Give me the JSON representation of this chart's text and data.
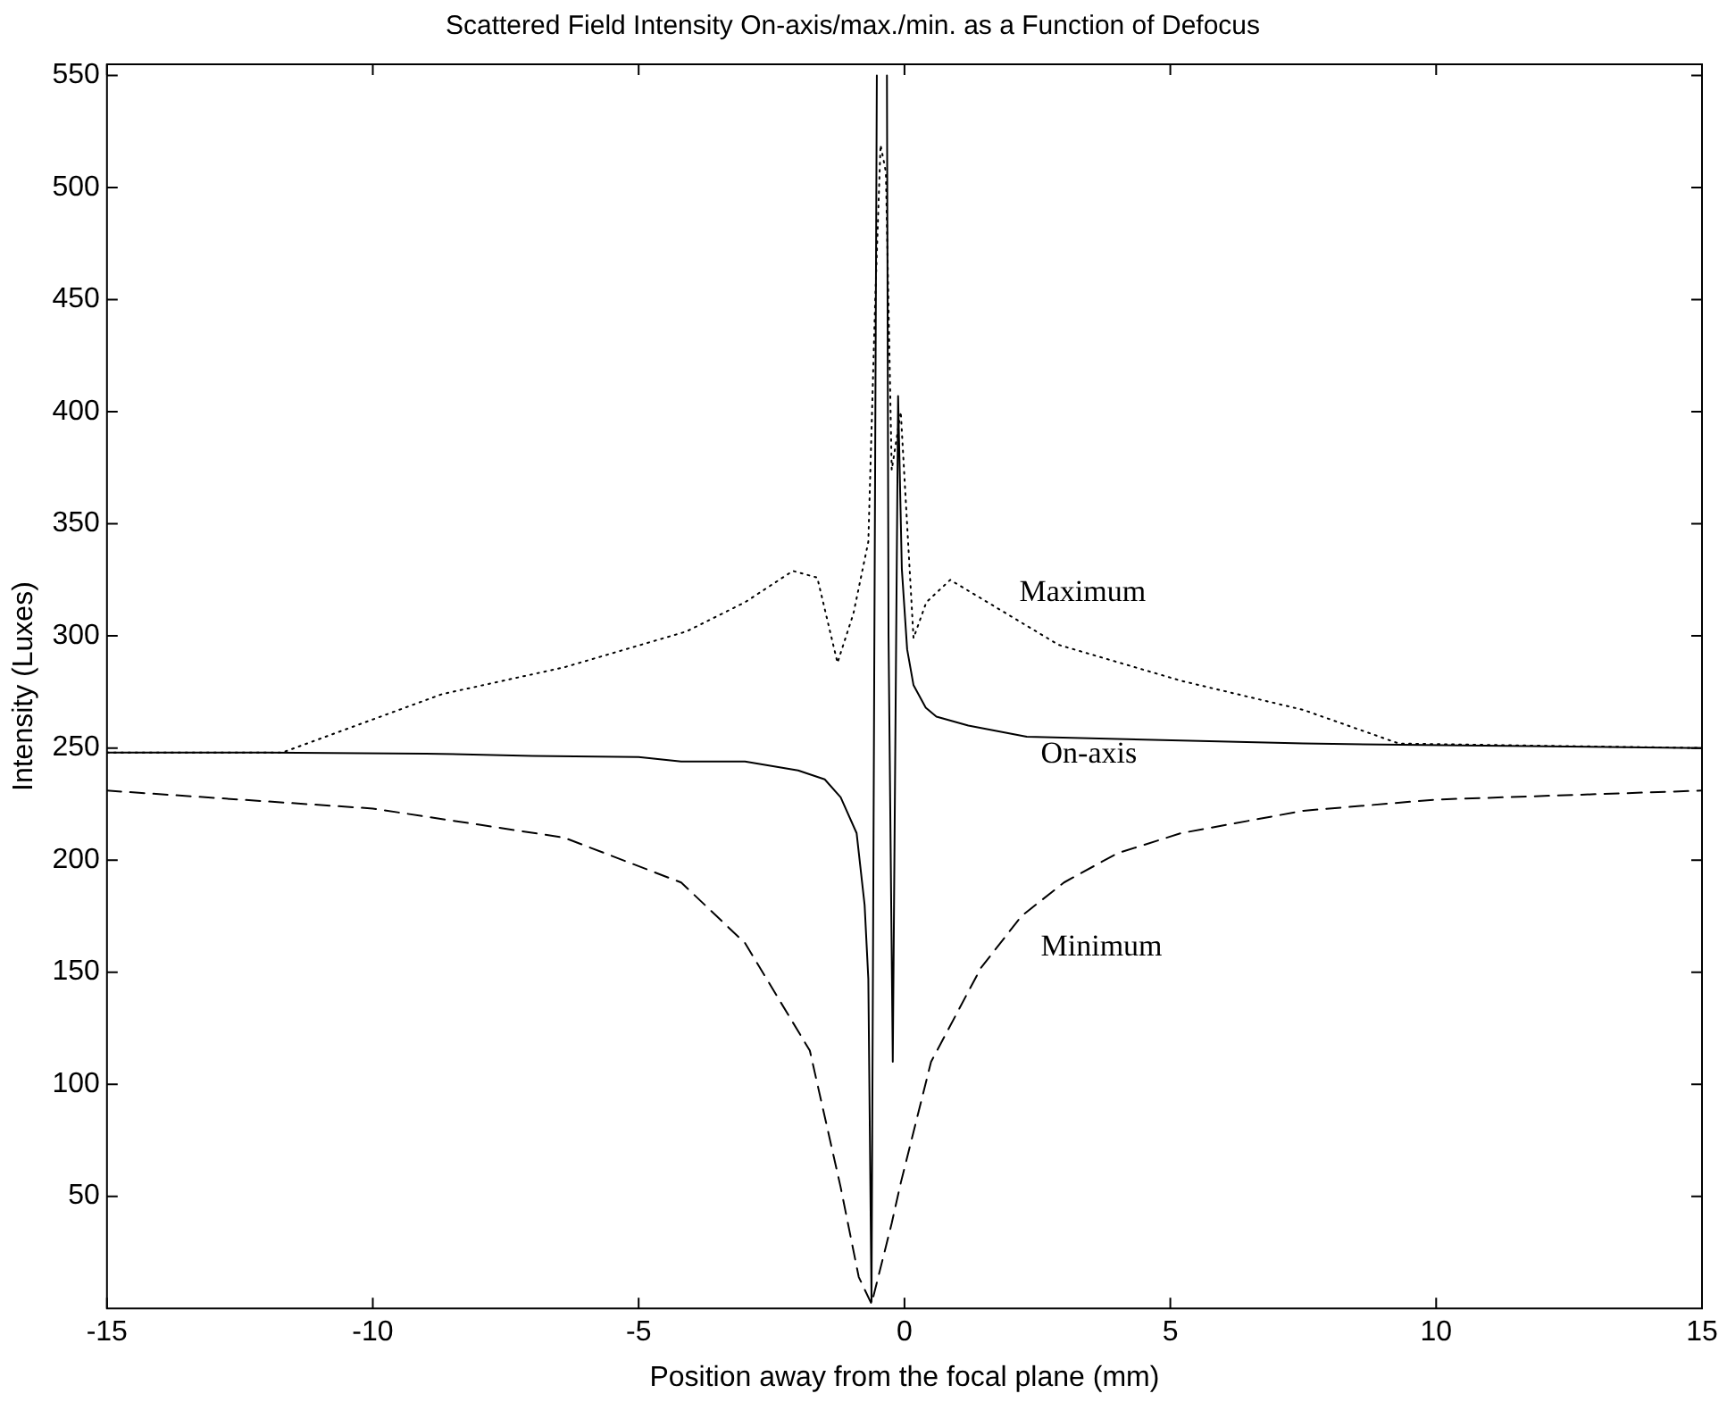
{
  "chart_data": {
    "type": "line",
    "title": "Scattered Field Intensity On-axis/max./min. as a Function of Defocus",
    "xlabel": "Position away from the focal plane (mm)",
    "ylabel": "Intensity (Luxes)",
    "xlim": [
      -15,
      15
    ],
    "xticks": [
      -15,
      -10,
      -5,
      0,
      5,
      10,
      15
    ],
    "ylim": [
      0,
      555
    ],
    "yticks": [
      50,
      100,
      150,
      200,
      250,
      300,
      350,
      400,
      450,
      500,
      550
    ],
    "grid": false,
    "legend": false,
    "marker": "none",
    "series": [
      {
        "name": "Maximum",
        "color": "#000000",
        "line_style": "dotted",
        "x": [
          -15,
          -11.7,
          -8.7,
          -6.4,
          -4.1,
          -3.0,
          -2.1,
          -1.64,
          -1.26,
          -0.96,
          -0.68,
          -0.55,
          -0.45,
          -0.35,
          -0.24,
          -0.07,
          0.17,
          0.41,
          0.86,
          2.9,
          5.2,
          7.5,
          9.3,
          12,
          15
        ],
        "values": [
          248,
          248,
          274,
          286,
          302,
          315,
          329,
          326,
          288,
          310,
          342,
          450,
          519,
          507,
          374,
          400,
          299,
          315,
          325,
          296,
          280,
          267,
          252,
          251,
          250
        ]
      },
      {
        "name": "On-axis",
        "color": "#000000",
        "line_style": "solid",
        "x": [
          -15,
          -12,
          -9,
          -7,
          -5,
          -4.2,
          -3,
          -2,
          -1.5,
          -1.2,
          -0.9,
          -0.75,
          -0.68,
          -0.62,
          -0.52,
          -0.5,
          -0.35,
          -0.33,
          -0.3,
          -0.22,
          -0.12,
          -0.05,
          0.05,
          0.17,
          0.4,
          0.6,
          1.2,
          2.3,
          4,
          7.5,
          10.9,
          15
        ],
        "values": [
          248,
          248,
          247.5,
          246.5,
          246,
          244,
          244,
          240,
          236,
          228,
          212,
          180,
          147,
          3,
          550,
          null,
          null,
          550,
          300,
          110,
          407,
          330,
          294,
          278,
          268,
          264,
          260,
          255,
          254,
          252,
          251,
          250
        ]
      },
      {
        "name": "Minimum",
        "color": "#000000",
        "line_style": "dashed",
        "x": [
          -15,
          -10,
          -6.4,
          -4.2,
          -3,
          -1.78,
          -1.2,
          -0.86,
          -0.62,
          -0.24,
          -0.07,
          0.5,
          1.44,
          2.2,
          3,
          4,
          5.2,
          7.5,
          10,
          15
        ],
        "values": [
          231,
          223,
          210,
          190,
          163,
          115,
          54,
          14,
          2,
          38,
          56,
          110,
          152,
          175,
          190,
          203,
          212,
          222,
          227,
          231
        ]
      }
    ]
  }
}
